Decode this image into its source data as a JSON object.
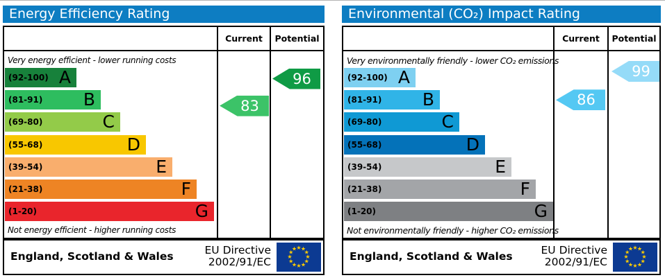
{
  "chart_data": [
    {
      "type": "bar",
      "title": "Energy Efficiency Rating",
      "caption_top": "Very energy efficient - lower running costs",
      "caption_bottom": "Not energy efficient - higher running costs",
      "columns": [
        "Current",
        "Potential"
      ],
      "bands": [
        {
          "letter": "A",
          "range_label": "(92-100)",
          "lo": 92,
          "hi": 100,
          "color": "#17813b",
          "width_frac": 0.342
        },
        {
          "letter": "B",
          "range_label": "(81-91)",
          "lo": 81,
          "hi": 91,
          "color": "#2ebd5f",
          "width_frac": 0.459
        },
        {
          "letter": "C",
          "range_label": "(69-80)",
          "lo": 69,
          "hi": 80,
          "color": "#93cb49",
          "width_frac": 0.551
        },
        {
          "letter": "D",
          "range_label": "(55-68)",
          "lo": 55,
          "hi": 68,
          "color": "#f8c700",
          "width_frac": 0.674
        },
        {
          "letter": "E",
          "range_label": "(39-54)",
          "lo": 39,
          "hi": 54,
          "color": "#f9ae6d",
          "width_frac": 0.8
        },
        {
          "letter": "F",
          "range_label": "(21-38)",
          "lo": 21,
          "hi": 38,
          "color": "#ee8424",
          "width_frac": 0.917
        },
        {
          "letter": "G",
          "range_label": "(1-20)",
          "lo": 1,
          "hi": 20,
          "color": "#e9252c",
          "width_frac": 1.0
        }
      ],
      "current": {
        "value": 83,
        "color": "#3cc368"
      },
      "potential": {
        "value": 96,
        "color": "#0f9b45"
      },
      "header_color": "#0d7dc2",
      "footer": {
        "region": "England, Scotland & Wales",
        "directive_line1": "EU Directive",
        "directive_line2": "2002/91/EC",
        "flag_blue": "#0c3a92",
        "star_color": "#ffcc00"
      }
    },
    {
      "type": "bar",
      "title": "Environmental (CO₂) Impact Rating",
      "caption_top": "Very environmentally friendly - lower CO₂ emissions",
      "caption_bottom": "Not environmentally friendly - higher CO₂ emissions",
      "columns": [
        "Current",
        "Potential"
      ],
      "bands": [
        {
          "letter": "A",
          "range_label": "(92-100)",
          "lo": 92,
          "hi": 100,
          "color": "#7ed0f1",
          "width_frac": 0.342
        },
        {
          "letter": "B",
          "range_label": "(81-91)",
          "lo": 81,
          "hi": 91,
          "color": "#30b4e7",
          "width_frac": 0.459
        },
        {
          "letter": "C",
          "range_label": "(69-80)",
          "lo": 69,
          "hi": 80,
          "color": "#0f99d4",
          "width_frac": 0.551
        },
        {
          "letter": "D",
          "range_label": "(55-68)",
          "lo": 55,
          "hi": 68,
          "color": "#0472b9",
          "width_frac": 0.674
        },
        {
          "letter": "E",
          "range_label": "(39-54)",
          "lo": 39,
          "hi": 54,
          "color": "#c6c8ca",
          "width_frac": 0.8
        },
        {
          "letter": "F",
          "range_label": "(21-38)",
          "lo": 21,
          "hi": 38,
          "color": "#a3a5a8",
          "width_frac": 0.917
        },
        {
          "letter": "G",
          "range_label": "(1-20)",
          "lo": 1,
          "hi": 20,
          "color": "#7e8083",
          "width_frac": 1.0
        }
      ],
      "current": {
        "value": 86,
        "color": "#54c8f3"
      },
      "potential": {
        "value": 99,
        "color": "#95dbf8"
      },
      "header_color": "#0d7dc2",
      "footer": {
        "region": "England, Scotland & Wales",
        "directive_line1": "EU Directive",
        "directive_line2": "2002/91/EC",
        "flag_blue": "#0c3a92",
        "star_color": "#ffcc00"
      }
    }
  ]
}
